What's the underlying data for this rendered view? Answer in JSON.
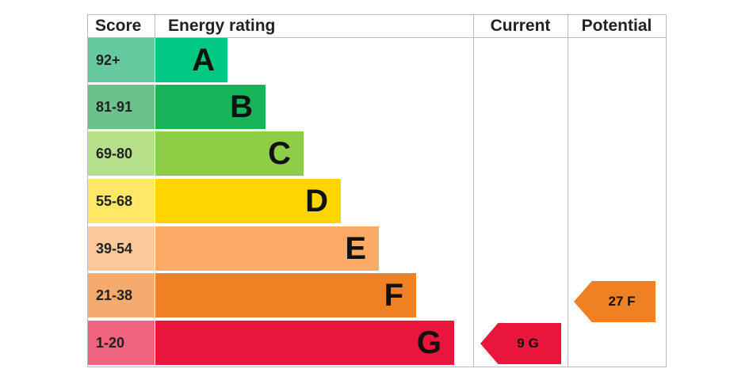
{
  "header": {
    "score": "Score",
    "rating": "Energy rating",
    "current": "Current",
    "potential": "Potential"
  },
  "bands": [
    {
      "score": "92+",
      "letter": "A",
      "color": "#00c781",
      "light": "#66c9a0"
    },
    {
      "score": "81-91",
      "letter": "B",
      "color": "#19b459",
      "light": "#6cc28c"
    },
    {
      "score": "69-80",
      "letter": "C",
      "color": "#8dce46",
      "light": "#b7e08a"
    },
    {
      "score": "55-68",
      "letter": "D",
      "color": "#ffd500",
      "light": "#ffe866"
    },
    {
      "score": "39-54",
      "letter": "E",
      "color": "#fcaa65",
      "light": "#fdc99a"
    },
    {
      "score": "21-38",
      "letter": "F",
      "color": "#ef8023",
      "light": "#f5ab6e"
    },
    {
      "score": "1-20",
      "letter": "G",
      "color": "#e9153b",
      "light": "#f0637e"
    }
  ],
  "current": {
    "label": "9 G",
    "color": "#e9153b"
  },
  "potential": {
    "label": "27 F",
    "color": "#ef8023"
  }
}
